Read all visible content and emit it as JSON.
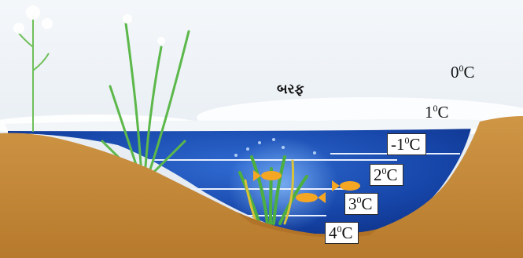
{
  "ice_label": "બરફ",
  "temperature_labels": [
    {
      "id": "t0",
      "value": "0",
      "unit": "C"
    },
    {
      "id": "t1",
      "value": "1",
      "unit": "C"
    },
    {
      "id": "tm1",
      "value": "-1",
      "unit": "C"
    },
    {
      "id": "t2",
      "value": "2",
      "unit": "C"
    },
    {
      "id": "t3",
      "value": "3",
      "unit": "C"
    },
    {
      "id": "t4",
      "value": "4",
      "unit": "C"
    }
  ],
  "degree_symbol": "0",
  "colors": {
    "sky": "#e6eef5",
    "ice": "#f5f7f8",
    "water_deep": "#0b2f86",
    "water_light": "#2c63c8",
    "soil": "#c88a3a",
    "soil_dark": "#a86b22",
    "layer_line": "#e9f0ff",
    "fish": "#f5a623",
    "plant": "#4caf3f"
  }
}
